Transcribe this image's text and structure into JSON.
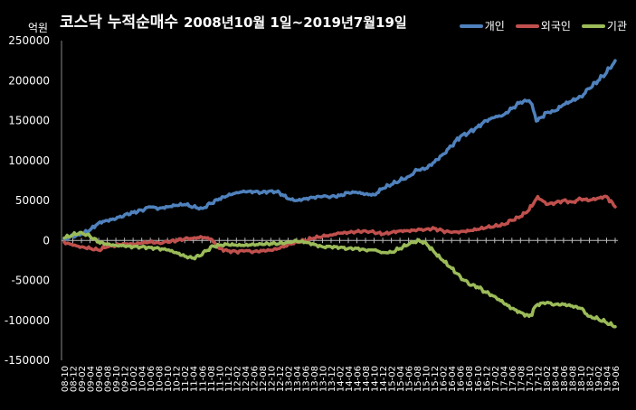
{
  "chart_data": {
    "type": "line",
    "title": "코스닥 누적순매수",
    "subtitle": "2008년10월 1일~2019년7월19일",
    "ylabel": "억원",
    "ylim": [
      -150000,
      250000
    ],
    "yticks": [
      250000,
      200000,
      150000,
      100000,
      50000,
      0,
      -50000,
      -100000,
      -150000
    ],
    "categories": [
      "08-10",
      "08-12",
      "09-02",
      "09-04",
      "09-06",
      "09-08",
      "09-10",
      "09-12",
      "10-02",
      "10-04",
      "10-06",
      "10-08",
      "10-10",
      "10-12",
      "11-02",
      "11-04",
      "11-06",
      "11-08",
      "11-10",
      "11-12",
      "12-02",
      "12-04",
      "12-06",
      "12-08",
      "12-10",
      "12-12",
      "13-02",
      "13-04",
      "13-06",
      "13-08",
      "13-10",
      "13-12",
      "14-02",
      "14-04",
      "14-06",
      "14-08",
      "14-10",
      "14-12",
      "15-02",
      "15-04",
      "15-06",
      "15-08",
      "15-10",
      "15-12",
      "16-02",
      "16-04",
      "16-06",
      "16-08",
      "16-10",
      "16-12",
      "17-02",
      "17-04",
      "17-06",
      "17-08",
      "17-10",
      "17-12",
      "18-02",
      "18-04",
      "18-06",
      "18-08",
      "18-10",
      "18-12",
      "19-02",
      "19-04",
      "19-06"
    ],
    "legend_position": "top-right",
    "series": [
      {
        "name": "개인",
        "color": "#4f81bd",
        "values": [
          2000,
          5000,
          8000,
          13000,
          22000,
          25000,
          27000,
          32000,
          35000,
          38000,
          42000,
          40000,
          42000,
          44000,
          45000,
          42000,
          40000,
          46000,
          52000,
          56000,
          60000,
          61000,
          61000,
          60000,
          62000,
          60000,
          52000,
          50000,
          52000,
          54000,
          55000,
          55000,
          56000,
          60000,
          60000,
          58000,
          57000,
          65000,
          70000,
          75000,
          80000,
          88000,
          90000,
          98000,
          108000,
          118000,
          130000,
          135000,
          142000,
          150000,
          154000,
          157000,
          165000,
          173000,
          175000,
          150000,
          160000,
          162000,
          170000,
          175000,
          180000,
          190000,
          200000,
          210000,
          225000
        ]
      },
      {
        "name": "외국인",
        "color": "#c0504d",
        "values": [
          -2000,
          -6000,
          -8000,
          -10000,
          -12000,
          -8000,
          -6000,
          -4000,
          -5000,
          -3000,
          -2000,
          -3000,
          -2000,
          0,
          2000,
          3000,
          4000,
          2000,
          -10000,
          -13000,
          -14000,
          -13000,
          -14000,
          -13000,
          -12000,
          -10000,
          -5000,
          -2000,
          0,
          3000,
          5000,
          7000,
          9000,
          10000,
          11000,
          12000,
          10000,
          8000,
          10000,
          12000,
          12000,
          13000,
          14000,
          15000,
          12000,
          10000,
          11000,
          12000,
          14000,
          16000,
          18000,
          20000,
          25000,
          30000,
          38000,
          55000,
          45000,
          47000,
          50000,
          48000,
          52000,
          50000,
          53000,
          55000,
          42000
        ]
      },
      {
        "name": "기관",
        "color": "#9bbb59",
        "values": [
          3000,
          7000,
          10000,
          5000,
          -2000,
          -5000,
          -6000,
          -7000,
          -8000,
          -8000,
          -9000,
          -10000,
          -12000,
          -15000,
          -20000,
          -22000,
          -18000,
          -8000,
          -6000,
          -5000,
          -6000,
          -6000,
          -5000,
          -5000,
          -4000,
          -4000,
          -2000,
          -1000,
          -2000,
          -5000,
          -8000,
          -8000,
          -9000,
          -10000,
          -10000,
          -12000,
          -12000,
          -15000,
          -15000,
          -10000,
          -5000,
          0,
          -3000,
          -15000,
          -25000,
          -35000,
          -45000,
          -55000,
          -58000,
          -65000,
          -70000,
          -78000,
          -85000,
          -90000,
          -95000,
          -80000,
          -78000,
          -80000,
          -80000,
          -82000,
          -85000,
          -95000,
          -98000,
          -103000,
          -108000
        ]
      }
    ]
  }
}
